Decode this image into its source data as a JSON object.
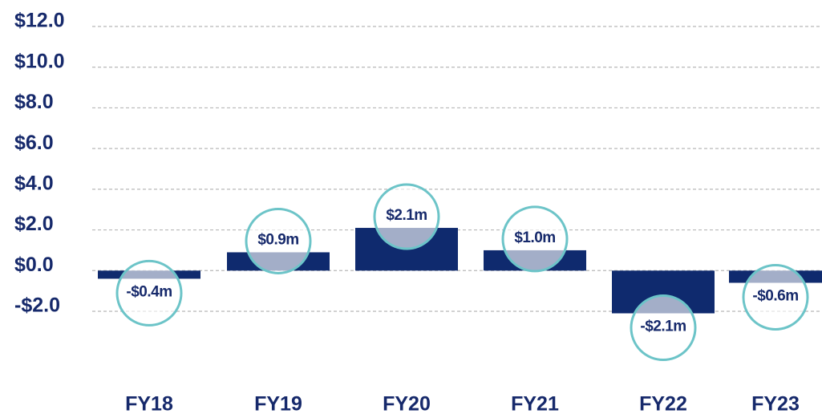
{
  "chart_data": {
    "type": "bar",
    "categories": [
      "FY18",
      "FY19",
      "FY20",
      "FY21",
      "FY22",
      "FY23"
    ],
    "values": [
      -0.4,
      0.9,
      2.1,
      1.0,
      -2.1,
      -0.6
    ],
    "value_labels": [
      "-$0.4m",
      "$0.9m",
      "$2.1m",
      "$1.0m",
      "-$2.1m",
      "-$0.6m"
    ],
    "color": "#0f2a6e",
    "ylim": [
      -2,
      12
    ],
    "yticks": [
      {
        "value": -2,
        "label": "-$2.0"
      },
      {
        "value": 0,
        "label": "$0.0"
      },
      {
        "value": 2,
        "label": "$2.0"
      },
      {
        "value": 4,
        "label": "$4.0"
      },
      {
        "value": 6,
        "label": "$6.0"
      },
      {
        "value": 8,
        "label": "$8.0"
      },
      {
        "value": 10,
        "label": "$10.0"
      },
      {
        "value": 12,
        "label": "$12.0"
      }
    ],
    "grid": true
  }
}
